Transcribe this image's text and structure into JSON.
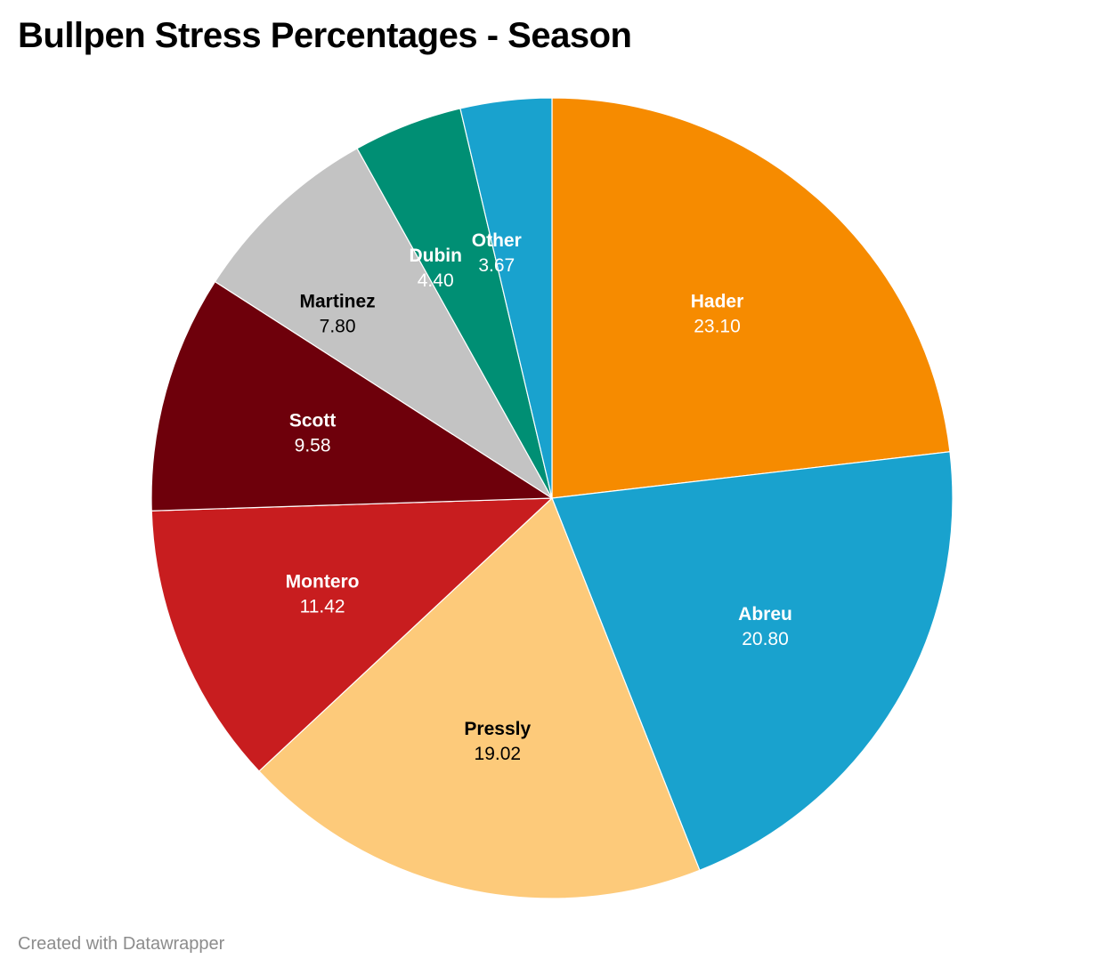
{
  "title": "Bullpen Stress Percentages - Season",
  "credit": "Created with Datawrapper",
  "chart_data": {
    "type": "pie",
    "title": "Bullpen Stress Percentages - Season",
    "start": "12 o'clock",
    "direction": "clockwise",
    "slices": [
      {
        "label": "Hader",
        "value": 23.1,
        "value_label": "23.10",
        "color": "#F68B00",
        "text_color": "#ffffff"
      },
      {
        "label": "Abreu",
        "value": 20.8,
        "value_label": "20.80",
        "color": "#19A2CE",
        "text_color": "#ffffff"
      },
      {
        "label": "Pressly",
        "value": 19.02,
        "value_label": "19.02",
        "color": "#FDCA7A",
        "text_color": "#000000"
      },
      {
        "label": "Montero",
        "value": 11.42,
        "value_label": "11.42",
        "color": "#C81D1F",
        "text_color": "#ffffff"
      },
      {
        "label": "Scott",
        "value": 9.58,
        "value_label": "9.58",
        "color": "#6E000B",
        "text_color": "#ffffff"
      },
      {
        "label": "Martinez",
        "value": 7.8,
        "value_label": "7.80",
        "color": "#C3C3C3",
        "text_color": "#000000"
      },
      {
        "label": "Dubin",
        "value": 4.4,
        "value_label": "4.40",
        "color": "#008F74",
        "text_color": "#ffffff"
      },
      {
        "label": "Other",
        "value": 3.67,
        "value_label": "3.67",
        "color": "#19A2CE",
        "text_color": "#ffffff"
      }
    ]
  }
}
